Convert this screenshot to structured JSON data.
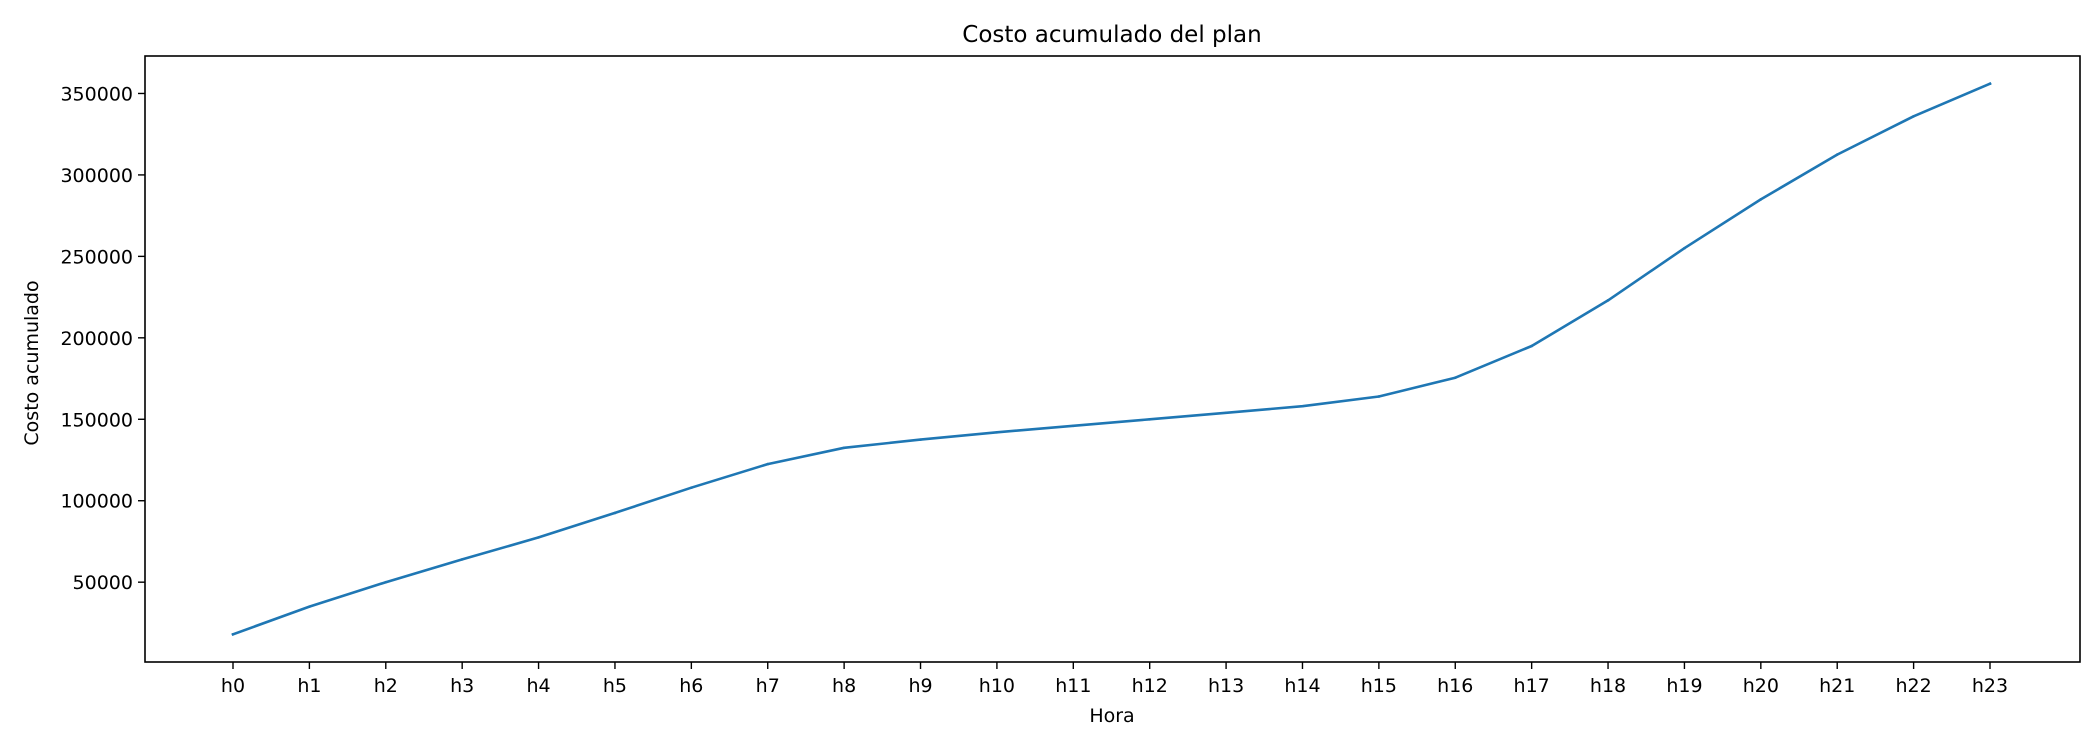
{
  "chart_data": {
    "type": "line",
    "title": "Costo acumulado del plan",
    "xlabel": "Hora",
    "ylabel": "Costo acumulado",
    "categories": [
      "h0",
      "h1",
      "h2",
      "h3",
      "h4",
      "h5",
      "h6",
      "h7",
      "h8",
      "h9",
      "h10",
      "h11",
      "h12",
      "h13",
      "h14",
      "h15",
      "h16",
      "h17",
      "h18",
      "h19",
      "h20",
      "h21",
      "h22",
      "h23"
    ],
    "series": [
      {
        "values": [
          18000,
          35000,
          50000,
          64000,
          77500,
          92500,
          108000,
          122500,
          132500,
          137500,
          142000,
          146000,
          150000,
          154000,
          158000,
          164000,
          175500,
          195000,
          223000,
          255000,
          285000,
          312500,
          336000,
          356000
        ],
        "color": "#1f77b4"
      }
    ],
    "yticks": [
      50000,
      100000,
      150000,
      200000,
      250000,
      300000,
      350000
    ],
    "ytick_labels": [
      "50000",
      "100000",
      "150000",
      "200000",
      "250000",
      "300000",
      "350000"
    ],
    "ylim": [
      1000,
      373000
    ],
    "grid": false
  }
}
